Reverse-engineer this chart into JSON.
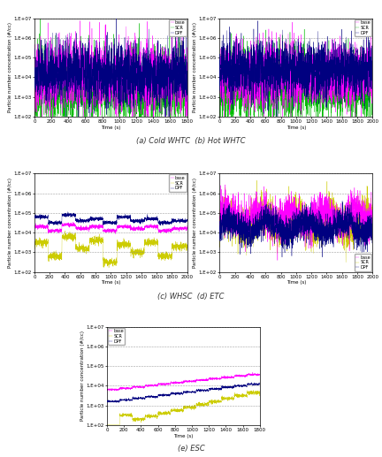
{
  "subplot_captions": [
    "(a) Cold WHTC  (b) Hot WHTC",
    "(c) WHSC  (d) ETC",
    "(e) ESC"
  ],
  "legend_labels": [
    "base",
    "SCR",
    "DPF"
  ],
  "colors_whtc": {
    "base": "#000080",
    "SCR": "#ff00ff",
    "DPF": "#00bb00"
  },
  "colors_other": {
    "base": "#000080",
    "SCR": "#ff00ff",
    "DPF": "#cccc00"
  },
  "ylabel": "Particle number concentration (#/cc)",
  "xlabel": "Time (s)",
  "caption_fontsize": 6,
  "axis_fontsize": 4,
  "tick_fontsize": 4,
  "legend_fontsize": 3.5,
  "yticks": [
    100.0,
    1000.0,
    10000.0,
    100000.0,
    1000000.0,
    10000000.0
  ],
  "ytick_labels": [
    "1.E+02",
    "1.E+03",
    "1.E+04",
    "1.E+05",
    "1.E+06",
    "1.E+07"
  ],
  "ylim": [
    100.0,
    10000000.0
  ],
  "background_color": "#ffffff",
  "linewidth": 0.25
}
